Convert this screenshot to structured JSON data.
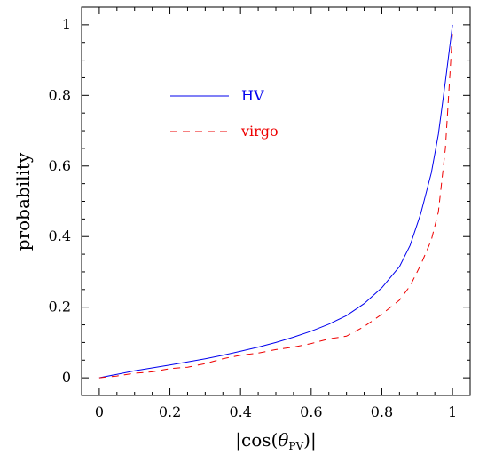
{
  "chart_data": {
    "type": "line",
    "xlabel_parts": {
      "bar_left": "|",
      "func": "cos(",
      "theta": "θ",
      "subscript": "PV",
      "close": ")",
      "bar_right": "|"
    },
    "ylabel": "probability",
    "xlim": [
      -0.05,
      1.05
    ],
    "ylim": [
      -0.05,
      1.05
    ],
    "x_ticks": [
      0,
      0.2,
      0.4,
      0.6,
      0.8,
      1
    ],
    "x_tick_labels": [
      "0",
      "0.2",
      "0.4",
      "0.6",
      "0.8",
      "1"
    ],
    "y_ticks": [
      0,
      0.2,
      0.4,
      0.6,
      0.8,
      1
    ],
    "y_tick_labels": [
      "0",
      "0.2",
      "0.4",
      "0.6",
      "0.8",
      "1"
    ],
    "grid": false,
    "legend_position": "upper-left",
    "series": [
      {
        "name": "HV",
        "color": "#0000ee",
        "style": "solid",
        "x": [
          0,
          0.05,
          0.1,
          0.15,
          0.2,
          0.25,
          0.3,
          0.35,
          0.4,
          0.45,
          0.5,
          0.55,
          0.6,
          0.65,
          0.7,
          0.75,
          0.8,
          0.85,
          0.88,
          0.91,
          0.94,
          0.96,
          0.98,
          1.0
        ],
        "y": [
          0,
          0.01,
          0.02,
          0.028,
          0.036,
          0.045,
          0.054,
          0.064,
          0.075,
          0.087,
          0.1,
          0.115,
          0.132,
          0.152,
          0.176,
          0.21,
          0.255,
          0.315,
          0.375,
          0.465,
          0.58,
          0.69,
          0.84,
          1.0
        ]
      },
      {
        "name": "virgo",
        "color": "#ee0000",
        "style": "dashed",
        "x": [
          0,
          0.05,
          0.1,
          0.15,
          0.2,
          0.25,
          0.3,
          0.35,
          0.4,
          0.45,
          0.5,
          0.55,
          0.6,
          0.65,
          0.7,
          0.75,
          0.8,
          0.85,
          0.88,
          0.91,
          0.94,
          0.96,
          0.98,
          1.0
        ],
        "y": [
          0,
          0.005,
          0.013,
          0.017,
          0.026,
          0.03,
          0.04,
          0.054,
          0.064,
          0.07,
          0.08,
          0.087,
          0.097,
          0.11,
          0.118,
          0.145,
          0.18,
          0.22,
          0.26,
          0.32,
          0.39,
          0.47,
          0.65,
          0.98
        ]
      }
    ]
  }
}
